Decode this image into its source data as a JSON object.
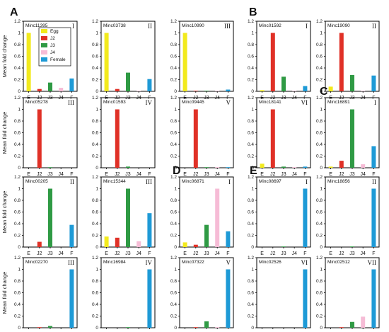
{
  "colors": {
    "Egg": "#f2ea1d",
    "J2": "#e03127",
    "J3": "#2f9a44",
    "J4": "#f6bcd6",
    "Female": "#1e9ad6"
  },
  "ylabel": "Mean fold change",
  "legend": [
    "Egg",
    "J2",
    "J3",
    "J4",
    "Female"
  ],
  "sections": [
    "A",
    "B",
    "C",
    "D",
    "E"
  ],
  "chart_data": [
    {
      "type": "bar",
      "gene": "Minc11395",
      "roman": "I",
      "categories": [
        "E",
        "J2",
        "J3",
        "J4",
        "F"
      ],
      "values": [
        1.0,
        0.04,
        0.15,
        0.06,
        0.22
      ],
      "yticks": [
        "0",
        "0.2",
        "0.4",
        "0.6",
        "0.8",
        "1",
        "1.2"
      ],
      "ylim": [
        0,
        1.2
      ]
    },
    {
      "type": "bar",
      "gene": "Minc03738",
      "roman": "II",
      "categories": [
        "E",
        "J2",
        "J3",
        "J4",
        "F"
      ],
      "values": [
        1.0,
        0.04,
        0.32,
        0.01,
        0.21
      ],
      "yticks": [
        "0",
        "0.2",
        "0.4",
        "0.6",
        "0.8",
        "1",
        "1.2"
      ],
      "ylim": [
        0,
        1.2
      ]
    },
    {
      "type": "bar",
      "gene": "Minc10990",
      "roman": "III",
      "categories": [
        "E",
        "J2",
        "J3",
        "J4",
        "F"
      ],
      "values": [
        1.0,
        0.01,
        0.01,
        0.01,
        0.03
      ],
      "yticks": [
        "0",
        "0.2",
        "0.4",
        "0.6",
        "0.8",
        "1",
        "1.2"
      ],
      "ylim": [
        0,
        1.2
      ]
    },
    {
      "type": "bar",
      "gene": "Minc01592",
      "roman": "I",
      "categories": [
        "E",
        "J2",
        "J3",
        "J4",
        "F"
      ],
      "values": [
        0.02,
        1.0,
        0.25,
        0.01,
        0.09
      ],
      "yticks": [
        "0",
        "0.2",
        "0.4",
        "0.6",
        "0.8",
        "1",
        "1.2"
      ],
      "ylim": [
        0,
        1.2
      ]
    },
    {
      "type": "bar",
      "gene": "Minc19090",
      "roman": "II",
      "categories": [
        "E",
        "J2",
        "J3",
        "J4",
        "F"
      ],
      "values": [
        0.08,
        1.0,
        0.28,
        0.01,
        0.27
      ],
      "yticks": [
        "0",
        "0.2",
        "0.4",
        "0.6",
        "0.8",
        "1",
        "1.2"
      ],
      "ylim": [
        0,
        1.2
      ]
    },
    {
      "type": "bar",
      "gene": "Minc05278",
      "roman": "III",
      "categories": [
        "E",
        "J2",
        "J3",
        "J4",
        "F"
      ],
      "values": [
        0.0,
        1.0,
        0.01,
        0.0,
        0.0
      ],
      "yticks": [
        "0",
        "0.2",
        "0.4",
        "0.6",
        "0.8",
        "1",
        "1.2"
      ],
      "ylim": [
        0,
        1.2
      ]
    },
    {
      "type": "bar",
      "gene": "Minc01593",
      "roman": "IV",
      "categories": [
        "E",
        "J2",
        "J3",
        "J4",
        "F"
      ],
      "values": [
        0.0,
        1.0,
        0.02,
        0.0,
        0.0
      ],
      "yticks": [
        "0",
        "0.2",
        "0.4",
        "0.6",
        "0.8",
        "1",
        "1.2"
      ],
      "ylim": [
        0,
        1.2
      ]
    },
    {
      "type": "bar",
      "gene": "Minc09445",
      "roman": "V",
      "categories": [
        "E",
        "J2",
        "J3",
        "J4",
        "F"
      ],
      "values": [
        0.0,
        1.0,
        0.01,
        0.01,
        0.01
      ],
      "yticks": [
        "0",
        "0.2",
        "0.4",
        "0.6",
        "0.8",
        "1",
        "1.2"
      ],
      "ylim": [
        0,
        1.2
      ]
    },
    {
      "type": "bar",
      "gene": "Minc18141",
      "roman": "VI",
      "categories": [
        "E",
        "J2",
        "J3",
        "J4",
        "F"
      ],
      "values": [
        0.07,
        1.0,
        0.02,
        0.01,
        0.02
      ],
      "yticks": [
        "0",
        "0.2",
        "0.4",
        "0.6",
        "0.8",
        "1",
        "1.2"
      ],
      "ylim": [
        0,
        1.2
      ]
    },
    {
      "type": "bar",
      "gene": "Minc16891",
      "roman": "I",
      "categories": [
        "E",
        "J2",
        "J3",
        "J4",
        "F"
      ],
      "values": [
        0.02,
        0.12,
        1.0,
        0.06,
        0.37
      ],
      "yticks": [
        "0",
        "0.2",
        "0.4",
        "0.6",
        "0.8",
        "1",
        "1.2"
      ],
      "ylim": [
        0,
        1.2
      ]
    },
    {
      "type": "bar",
      "gene": "Minc00205",
      "roman": "II",
      "categories": [
        "E",
        "J2",
        "J3",
        "J4",
        "F"
      ],
      "values": [
        0.0,
        0.09,
        1.0,
        0.0,
        0.38
      ],
      "yticks": [
        "0",
        "0.2",
        "0.4",
        "0.6",
        "0.8",
        "1",
        "1.2"
      ],
      "ylim": [
        0,
        1.2
      ]
    },
    {
      "type": "bar",
      "gene": "Minc15344",
      "roman": "III",
      "categories": [
        "E",
        "J2",
        "J3",
        "J4",
        "F"
      ],
      "values": [
        0.18,
        0.16,
        1.0,
        0.1,
        0.58
      ],
      "yticks": [
        "0",
        "0.2",
        "0.4",
        "0.6",
        "0.8",
        "1",
        "1.2"
      ],
      "ylim": [
        0,
        1.2
      ]
    },
    {
      "type": "bar",
      "gene": "Minc06871",
      "roman": "I",
      "categories": [
        "E",
        "J2",
        "J3",
        "J4",
        "F"
      ],
      "values": [
        0.08,
        0.04,
        0.38,
        1.0,
        0.27
      ],
      "yticks": [
        "0",
        "0.2",
        "0.4",
        "0.6",
        "0.8",
        "1",
        "1.2"
      ],
      "ylim": [
        0,
        1.2
      ]
    },
    {
      "type": "bar",
      "gene": "Minc08697",
      "roman": "I",
      "categories": [
        "E",
        "J2",
        "J3",
        "J4",
        "F"
      ],
      "values": [
        0.0,
        0.0,
        0.01,
        0.0,
        1.0
      ],
      "yticks": [
        "0",
        "0.2",
        "0.4",
        "0.6",
        "0.8",
        "1",
        "1.2"
      ],
      "ylim": [
        0,
        1.2
      ]
    },
    {
      "type": "bar",
      "gene": "Minc18856",
      "roman": "II",
      "categories": [
        "E",
        "J2",
        "J3",
        "J4",
        "F"
      ],
      "values": [
        0.0,
        0.0,
        0.01,
        0.0,
        1.0
      ],
      "yticks": [
        "0",
        "0.2",
        "0.4",
        "0.6",
        "0.8",
        "1",
        "1.2"
      ],
      "ylim": [
        0,
        1.2
      ]
    },
    {
      "type": "bar",
      "gene": "Minc02270",
      "roman": "III",
      "categories": [
        "E",
        "J2",
        "J3",
        "J4",
        "F"
      ],
      "values": [
        0.0,
        0.01,
        0.03,
        0.0,
        1.0
      ],
      "yticks": [
        "0",
        "0.2",
        "0.4",
        "0.6",
        "0.8",
        "1",
        "1.2"
      ],
      "ylim": [
        0,
        1.2
      ]
    },
    {
      "type": "bar",
      "gene": "Minc16984",
      "roman": "IV",
      "categories": [
        "E",
        "J2",
        "J3",
        "J4",
        "F"
      ],
      "values": [
        0.0,
        0.0,
        0.01,
        0.0,
        1.0
      ],
      "yticks": [
        "0",
        "0.2",
        "0.4",
        "0.6",
        "0.8",
        "1",
        "1.2"
      ],
      "ylim": [
        0,
        1.2
      ]
    },
    {
      "type": "bar",
      "gene": "Minc07322",
      "roman": "V",
      "categories": [
        "E",
        "J2",
        "J3",
        "J4",
        "F"
      ],
      "values": [
        0.0,
        0.01,
        0.11,
        0.01,
        1.0
      ],
      "yticks": [
        "0",
        "0.2",
        "0.4",
        "0.6",
        "0.8",
        "1",
        "1.2"
      ],
      "ylim": [
        0,
        1.2
      ]
    },
    {
      "type": "bar",
      "gene": "Minc02526",
      "roman": "VI",
      "categories": [
        "E",
        "J2",
        "J3",
        "J4",
        "F"
      ],
      "values": [
        0.0,
        0.0,
        0.0,
        0.0,
        1.0
      ],
      "yticks": [
        "0",
        "0.2",
        "0.4",
        "0.6",
        "0.8",
        "1",
        "1.2"
      ],
      "ylim": [
        0,
        1.2
      ]
    },
    {
      "type": "bar",
      "gene": "Minc02512",
      "roman": "VII",
      "categories": [
        "E",
        "J2",
        "J3",
        "J4",
        "F"
      ],
      "values": [
        0.0,
        0.01,
        0.1,
        0.19,
        1.0
      ],
      "yticks": [
        "0",
        "0.2",
        "0.4",
        "0.6",
        "0.8",
        "1",
        "1.2"
      ],
      "ylim": [
        0,
        1.2
      ]
    }
  ]
}
